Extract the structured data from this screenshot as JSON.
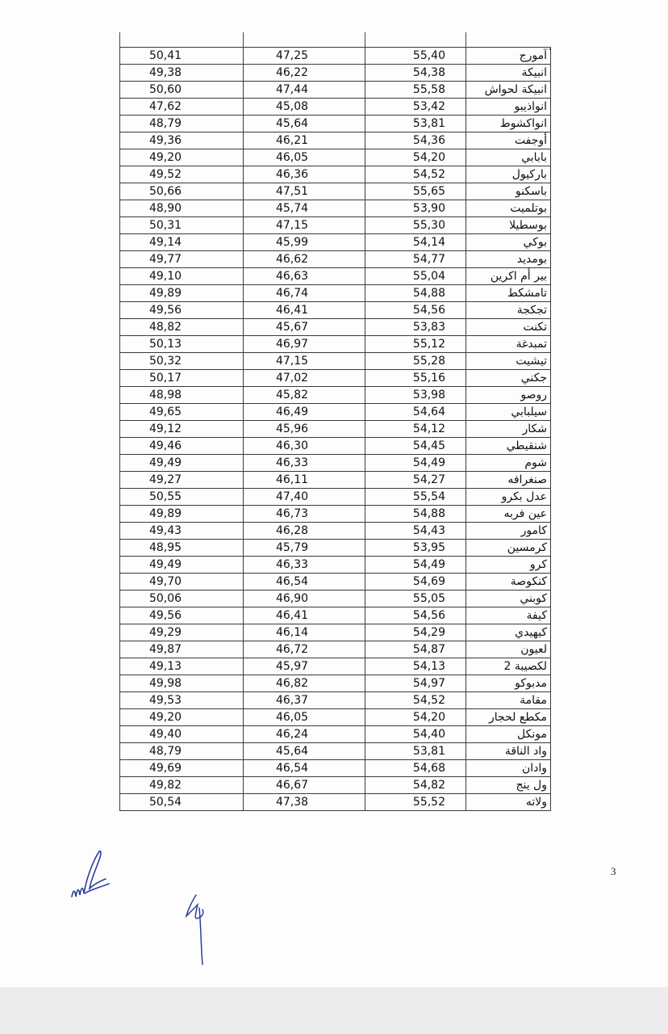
{
  "table": {
    "rows": [
      {
        "name": "آمورج",
        "v3": "55,40",
        "v2": "47,25",
        "v1": "50,41"
      },
      {
        "name": "انبيكة",
        "v3": "54,38",
        "v2": "46,22",
        "v1": "49,38"
      },
      {
        "name": "انبيكة لحواش",
        "v3": "55,58",
        "v2": "47,44",
        "v1": "50,60"
      },
      {
        "name": "انواذيبو",
        "v3": "53,42",
        "v2": "45,08",
        "v1": "47,62"
      },
      {
        "name": "انواكشوط",
        "v3": "53,81",
        "v2": "45,64",
        "v1": "48,79"
      },
      {
        "name": "أوجفت",
        "v3": "54,36",
        "v2": "46,21",
        "v1": "49,36"
      },
      {
        "name": "بابابي",
        "v3": "54,20",
        "v2": "46,05",
        "v1": "49,20"
      },
      {
        "name": "باركيول",
        "v3": "54,52",
        "v2": "46,36",
        "v1": "49,52"
      },
      {
        "name": "باسكنو",
        "v3": "55,65",
        "v2": "47,51",
        "v1": "50,66"
      },
      {
        "name": "بوتلميت",
        "v3": "53,90",
        "v2": "45,74",
        "v1": "48,90"
      },
      {
        "name": "بوسطيلا",
        "v3": "55,30",
        "v2": "47,15",
        "v1": "50,31"
      },
      {
        "name": "بوكي",
        "v3": "54,14",
        "v2": "45,99",
        "v1": "49,14"
      },
      {
        "name": "بومديد",
        "v3": "54,77",
        "v2": "46,62",
        "v1": "49,77"
      },
      {
        "name": "بير أم اكرين",
        "v3": "55,04",
        "v2": "46,63",
        "v1": "49,10"
      },
      {
        "name": "تامشكط",
        "v3": "54,88",
        "v2": "46,74",
        "v1": "49,89"
      },
      {
        "name": "تجكجة",
        "v3": "54,56",
        "v2": "46,41",
        "v1": "49,56"
      },
      {
        "name": "تكنت",
        "v3": "53,83",
        "v2": "45,67",
        "v1": "48,82"
      },
      {
        "name": "تمبدغة",
        "v3": "55,12",
        "v2": "46,97",
        "v1": "50,13"
      },
      {
        "name": "تيشيت",
        "v3": "55,28",
        "v2": "47,15",
        "v1": "50,32"
      },
      {
        "name": "جكني",
        "v3": "55,16",
        "v2": "47,02",
        "v1": "50,17"
      },
      {
        "name": "روصو",
        "v3": "53,98",
        "v2": "45,82",
        "v1": "48,98"
      },
      {
        "name": "سيلبابي",
        "v3": "54,64",
        "v2": "46,49",
        "v1": "49,65"
      },
      {
        "name": "شكار",
        "v3": "54,12",
        "v2": "45,96",
        "v1": "49,12"
      },
      {
        "name": "شنقيطي",
        "v3": "54,45",
        "v2": "46,30",
        "v1": "49,46"
      },
      {
        "name": "شوم",
        "v3": "54,49",
        "v2": "46,33",
        "v1": "49,49"
      },
      {
        "name": "صنغرافه",
        "v3": "54,27",
        "v2": "46,11",
        "v1": "49,27"
      },
      {
        "name": "عدل بكرو",
        "v3": "55,54",
        "v2": "47,40",
        "v1": "50,55"
      },
      {
        "name": "عين فربه",
        "v3": "54,88",
        "v2": "46,73",
        "v1": "49,89"
      },
      {
        "name": "كامور",
        "v3": "54,43",
        "v2": "46,28",
        "v1": "49,43"
      },
      {
        "name": "كرمسين",
        "v3": "53,95",
        "v2": "45,79",
        "v1": "48,95"
      },
      {
        "name": "كرو",
        "v3": "54,49",
        "v2": "46,33",
        "v1": "49,49"
      },
      {
        "name": "كنكوصة",
        "v3": "54,69",
        "v2": "46,54",
        "v1": "49,70"
      },
      {
        "name": "كوبني",
        "v3": "55,05",
        "v2": "46,90",
        "v1": "50,06"
      },
      {
        "name": "كيفة",
        "v3": "54,56",
        "v2": "46,41",
        "v1": "49,56"
      },
      {
        "name": "كيهيدي",
        "v3": "54,29",
        "v2": "46,14",
        "v1": "49,29"
      },
      {
        "name": "لعيون",
        "v3": "54,87",
        "v2": "46,72",
        "v1": "49,87"
      },
      {
        "name": "لكصيبة 2",
        "v3": "54,13",
        "v2": "45,97",
        "v1": "49,13"
      },
      {
        "name": "مدبوكو",
        "v3": "54,97",
        "v2": "46,82",
        "v1": "49,98"
      },
      {
        "name": "مقامة",
        "v3": "54,52",
        "v2": "46,37",
        "v1": "49,53"
      },
      {
        "name": "مكطع لحجار",
        "v3": "54,20",
        "v2": "46,05",
        "v1": "49,20"
      },
      {
        "name": "مونكل",
        "v3": "54,40",
        "v2": "46,24",
        "v1": "49,40"
      },
      {
        "name": "واد الناقة",
        "v3": "53,81",
        "v2": "45,64",
        "v1": "48,79"
      },
      {
        "name": "وادان",
        "v3": "54,68",
        "v2": "46,54",
        "v1": "49,69"
      },
      {
        "name": "ول ينج",
        "v3": "54,82",
        "v2": "46,67",
        "v1": "49,82"
      },
      {
        "name": "ولاته",
        "v3": "55,52",
        "v2": "47,38",
        "v1": "50,54"
      }
    ]
  },
  "page_number": "3",
  "signature_icons": [
    "signature-1",
    "signature-2"
  ]
}
